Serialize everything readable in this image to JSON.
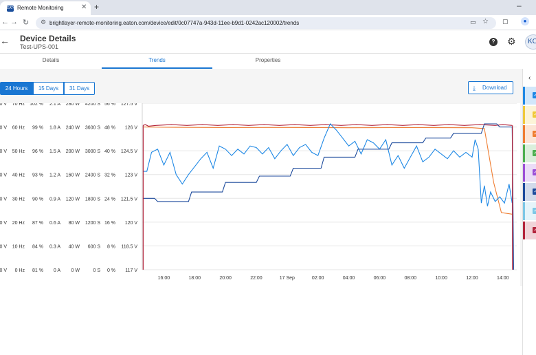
{
  "browser": {
    "tab_title": "Remote Monitoring",
    "favicon_label": "EATON",
    "new_tab_glyph": "+",
    "close_glyph": "✕",
    "url": "brightlayer-remote-monitoring.eaton.com/device/edit/0c07747a-943d-11ee-b9d1-0242ac120002/trends"
  },
  "header": {
    "title": "Device Details",
    "subtitle": "Test-UPS-001",
    "help_label": "?",
    "avatar_initials": "KC"
  },
  "tabs": [
    {
      "label": "Details",
      "active": false
    },
    {
      "label": "Trends",
      "active": true
    },
    {
      "label": "Properties",
      "active": false
    }
  ],
  "time_ranges": [
    {
      "label": "24 Hours",
      "active": true
    },
    {
      "label": "15 Days",
      "active": false
    },
    {
      "label": "31 Days",
      "active": false
    }
  ],
  "download_label": "Download",
  "legend_colors": [
    "#1e88e5",
    "#f0c93a",
    "#ef7d31",
    "#4caf50",
    "#9c4fd6",
    "#1c4a9c",
    "#7cc7e6",
    "#b3243b"
  ],
  "chart_data": {
    "type": "line",
    "x_ticks": [
      "16:00",
      "18:00",
      "20:00",
      "22:00",
      "17 Sep",
      "02:00",
      "04:00",
      "06:00",
      "08:00",
      "10:00",
      "12:00",
      "14:00"
    ],
    "y_axes": [
      {
        "ticks": [
          "0 V",
          "0 V",
          "0 V",
          "0 V",
          "0 V",
          "0 V",
          "0 V",
          "0 V"
        ]
      },
      {
        "ticks": [
          "70 Hz",
          "60 Hz",
          "50 Hz",
          "40 Hz",
          "30 Hz",
          "20 Hz",
          "10 Hz",
          "0 Hz"
        ]
      },
      {
        "ticks": [
          "102 %",
          "99 %",
          "96 %",
          "93 %",
          "90 %",
          "87 %",
          "84 %",
          "81 %"
        ]
      },
      {
        "ticks": [
          "2.1 A",
          "1.8 A",
          "1.5 A",
          "1.2 A",
          "0.9 A",
          "0.6 A",
          "0.3 A",
          "0 A"
        ]
      },
      {
        "ticks": [
          "280 W",
          "240 W",
          "200 W",
          "160 W",
          "120 W",
          "80 W",
          "40 W",
          "0 W"
        ]
      },
      {
        "ticks": [
          "4200 S",
          "3600 S",
          "3000 S",
          "2400 S",
          "1800 S",
          "1200 S",
          "600 S",
          "0 S"
        ]
      },
      {
        "ticks": [
          "56 %",
          "48 %",
          "40 %",
          "32 %",
          "24 %",
          "16 %",
          "8 %",
          "0 %"
        ]
      },
      {
        "ticks": [
          "127.5 V",
          "126 V",
          "124.5 V",
          "123 V",
          "121.5 V",
          "120 V",
          "118.5 V",
          "117 V"
        ]
      }
    ],
    "x_range_hours": [
      14.6,
      38.9
    ],
    "series": [
      {
        "color": "#b3243b",
        "axis": "127.5 V",
        "points": [
          [
            14.65,
            126.1
          ],
          [
            14.8,
            126.15
          ],
          [
            15.0,
            126.05
          ],
          [
            15.5,
            126.1
          ],
          [
            16.5,
            126.15
          ],
          [
            17.5,
            126.1
          ],
          [
            18.5,
            126.15
          ],
          [
            19.5,
            126.1
          ],
          [
            20.5,
            126.15
          ],
          [
            21.5,
            126.1
          ],
          [
            22.5,
            126.15
          ],
          [
            23.5,
            126.1
          ],
          [
            24.5,
            126.15
          ],
          [
            25.5,
            126.1
          ],
          [
            26.5,
            126.15
          ],
          [
            27.5,
            126.1
          ],
          [
            28.5,
            126.15
          ],
          [
            29.5,
            126.1
          ],
          [
            30.5,
            126.15
          ],
          [
            31.5,
            126.1
          ],
          [
            32.5,
            126.15
          ],
          [
            33.5,
            126.1
          ],
          [
            34.5,
            126.15
          ],
          [
            35.5,
            126.1
          ],
          [
            36.5,
            126.15
          ],
          [
            37.5,
            126.1
          ],
          [
            38.0,
            126.15
          ],
          [
            38.6,
            126.1
          ]
        ]
      },
      {
        "color": "#ef7d31",
        "axis": "127.5 V",
        "points": [
          [
            14.7,
            126.0
          ],
          [
            16.0,
            125.98
          ],
          [
            20.0,
            125.96
          ],
          [
            24.0,
            125.97
          ],
          [
            28.0,
            125.95
          ],
          [
            32.0,
            125.96
          ],
          [
            36.0,
            125.95
          ],
          [
            36.8,
            125.9
          ],
          [
            37.4,
            122.5
          ],
          [
            37.9,
            120.6
          ],
          [
            38.6,
            120.5
          ]
        ]
      },
      {
        "color": "#1e88e5",
        "axis": "127.5 V",
        "points": [
          [
            14.65,
            123.2
          ],
          [
            14.9,
            123.2
          ],
          [
            15.2,
            124.4
          ],
          [
            15.6,
            124.6
          ],
          [
            16.0,
            123.6
          ],
          [
            16.4,
            124.4
          ],
          [
            16.8,
            123.0
          ],
          [
            17.2,
            122.4
          ],
          [
            17.6,
            123.0
          ],
          [
            18.0,
            123.5
          ],
          [
            18.4,
            124.0
          ],
          [
            18.8,
            124.4
          ],
          [
            19.2,
            123.4
          ],
          [
            19.6,
            124.8
          ],
          [
            20.0,
            124.6
          ],
          [
            20.4,
            124.2
          ],
          [
            20.8,
            124.6
          ],
          [
            21.2,
            124.3
          ],
          [
            21.6,
            124.8
          ],
          [
            22.0,
            124.7
          ],
          [
            22.4,
            124.3
          ],
          [
            22.8,
            124.7
          ],
          [
            23.2,
            124.0
          ],
          [
            23.6,
            124.5
          ],
          [
            24.0,
            124.9
          ],
          [
            24.4,
            124.2
          ],
          [
            24.8,
            124.7
          ],
          [
            25.2,
            124.9
          ],
          [
            25.6,
            124.4
          ],
          [
            26.0,
            124.2
          ],
          [
            26.4,
            125.3
          ],
          [
            26.8,
            126.2
          ],
          [
            27.2,
            125.8
          ],
          [
            27.6,
            125.3
          ],
          [
            28.0,
            124.8
          ],
          [
            28.4,
            125.1
          ],
          [
            28.8,
            124.3
          ],
          [
            29.2,
            125.2
          ],
          [
            29.6,
            125.0
          ],
          [
            30.0,
            124.6
          ],
          [
            30.4,
            125.2
          ],
          [
            30.8,
            123.6
          ],
          [
            31.2,
            124.2
          ],
          [
            31.6,
            123.4
          ],
          [
            32.0,
            124.1
          ],
          [
            32.4,
            124.8
          ],
          [
            32.8,
            123.8
          ],
          [
            33.2,
            124.1
          ],
          [
            33.6,
            124.6
          ],
          [
            34.0,
            124.3
          ],
          [
            34.4,
            124.0
          ],
          [
            34.8,
            124.5
          ],
          [
            35.2,
            124.1
          ],
          [
            35.6,
            124.4
          ],
          [
            36.0,
            124.1
          ],
          [
            36.2,
            125.2
          ],
          [
            36.4,
            124.6
          ],
          [
            36.6,
            121.2
          ],
          [
            36.8,
            122.3
          ],
          [
            37.0,
            121.0
          ],
          [
            37.2,
            121.9
          ],
          [
            37.5,
            121.3
          ],
          [
            37.8,
            121.6
          ],
          [
            38.1,
            121.2
          ],
          [
            38.4,
            122.4
          ],
          [
            38.6,
            121.2
          ]
        ]
      },
      {
        "color": "#1c4a9c",
        "axis": "127.5 V",
        "points": [
          [
            14.65,
            121.5
          ],
          [
            15.4,
            121.5
          ],
          [
            15.6,
            121.3
          ],
          [
            17.6,
            121.3
          ],
          [
            17.8,
            121.9
          ],
          [
            19.8,
            121.9
          ],
          [
            20.0,
            122.5
          ],
          [
            22.0,
            122.5
          ],
          [
            22.2,
            122.9
          ],
          [
            24.2,
            122.9
          ],
          [
            24.4,
            123.4
          ],
          [
            26.2,
            123.4
          ],
          [
            26.4,
            124.1
          ],
          [
            28.4,
            124.1
          ],
          [
            28.6,
            124.6
          ],
          [
            30.6,
            124.6
          ],
          [
            30.8,
            125.0
          ],
          [
            32.8,
            125.0
          ],
          [
            33.0,
            125.3
          ],
          [
            34.6,
            125.3
          ],
          [
            34.8,
            125.6
          ],
          [
            36.6,
            125.6
          ],
          [
            36.8,
            126.2
          ],
          [
            37.6,
            126.2
          ],
          [
            37.8,
            126.0
          ],
          [
            38.6,
            126.0
          ],
          [
            38.7,
            117.0
          ]
        ]
      }
    ]
  }
}
